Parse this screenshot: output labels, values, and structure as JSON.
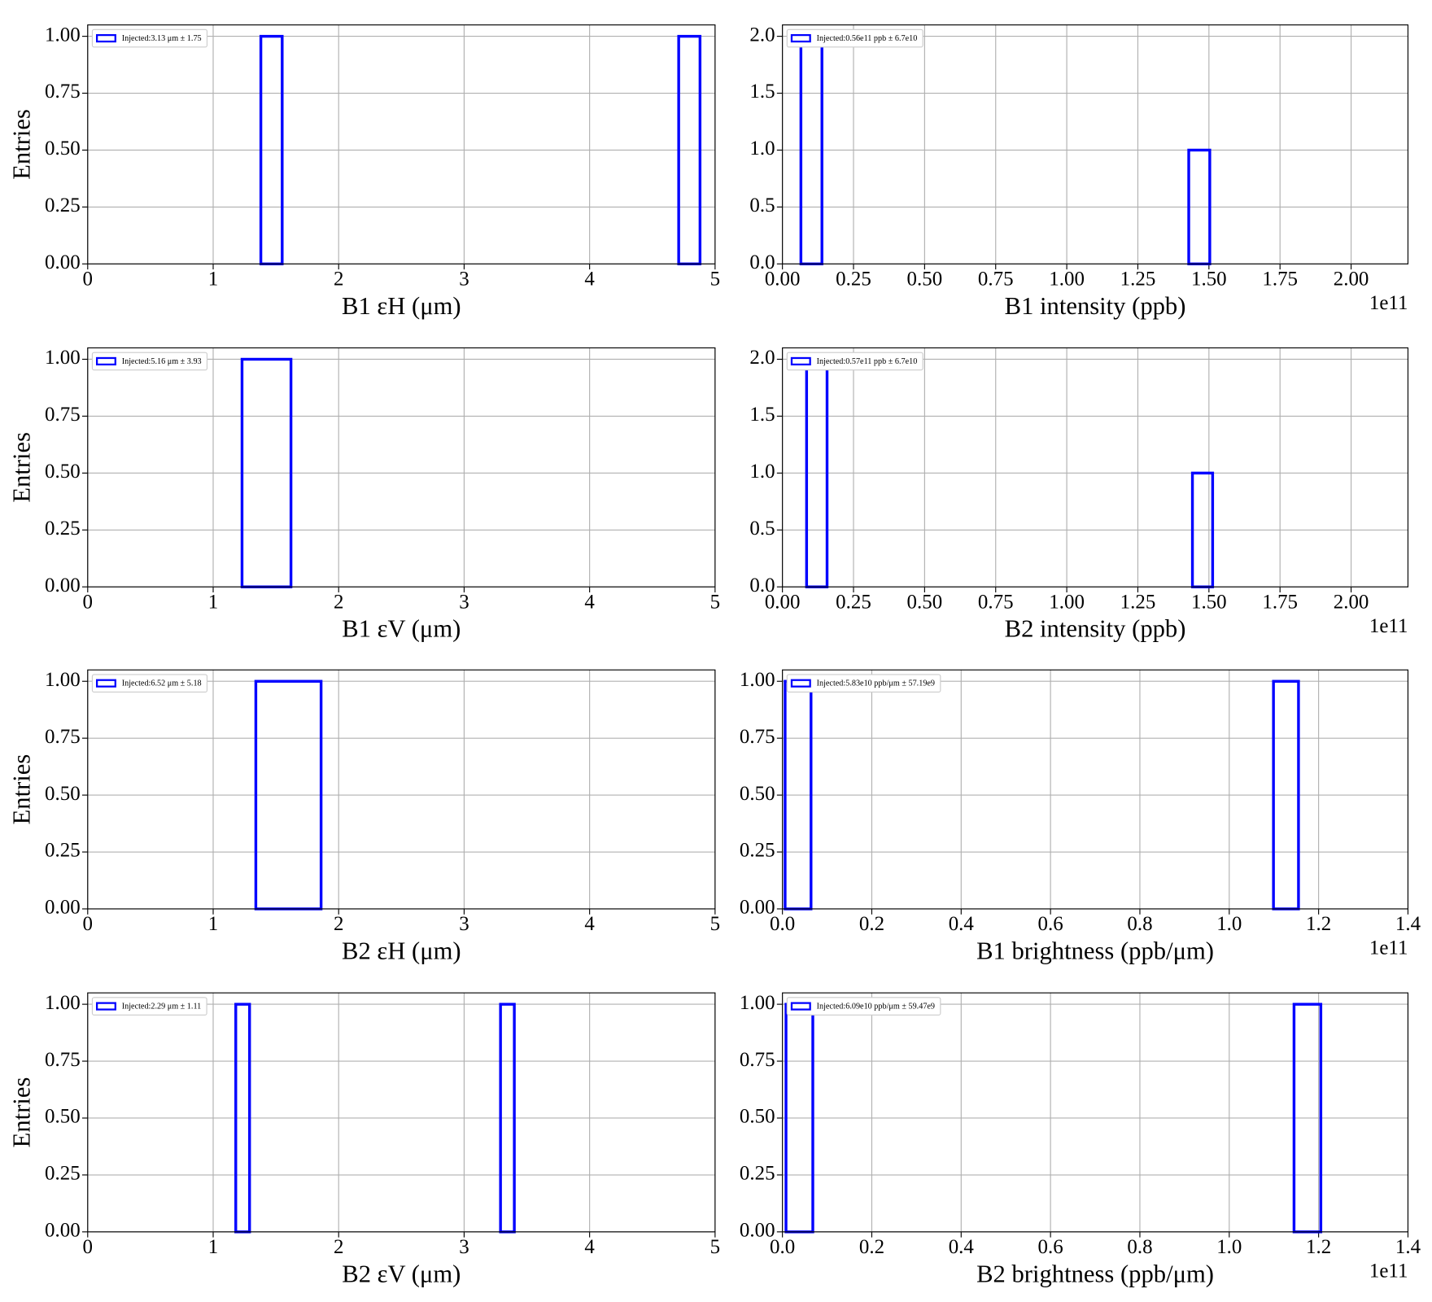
{
  "chart_data": [
    {
      "type": "histogram",
      "xlabel": "B1 εH (μm)",
      "ylabel": "Entries",
      "name": "Injected:3.13 μm ± 1.75",
      "color": "#0000ff",
      "legend": "upper left",
      "grid": true,
      "bins": [
        1.38,
        1.55,
        4.71,
        4.88
      ],
      "counts": [
        1,
        0,
        1
      ],
      "xlim": [
        0,
        5
      ],
      "xticks": [
        0,
        1,
        2,
        3,
        4,
        5
      ],
      "ylim": [
        0,
        1.05
      ],
      "yticks": [
        {
          "value": 0,
          "label": "0.00"
        },
        {
          "value": 0.25,
          "label": "0.25"
        },
        {
          "value": 0.5,
          "label": "0.50"
        },
        {
          "value": 0.75,
          "label": "0.75"
        },
        {
          "value": 1,
          "label": "1.00"
        }
      ]
    },
    {
      "type": "histogram",
      "xlabel": "B1 intensity (ppb)",
      "x_offset_label": "1e11",
      "name": "Injected:0.56e11 ppb ± 6.7e10",
      "color": "#0000ff",
      "legend": "upper left",
      "grid": true,
      "bins": [
        6500000000,
        13900000000,
        142900000000,
        150300000000
      ],
      "counts": [
        2,
        0,
        1
      ],
      "xlim": [
        0,
        220000000000
      ],
      "xticks": [
        {
          "value": 0,
          "label": "0.00"
        },
        {
          "value": 25000000000,
          "label": "0.25"
        },
        {
          "value": 50000000000,
          "label": "0.50"
        },
        {
          "value": 75000000000,
          "label": "0.75"
        },
        {
          "value": 100000000000,
          "label": "1.00"
        },
        {
          "value": 125000000000,
          "label": "1.25"
        },
        {
          "value": 150000000000,
          "label": "1.50"
        },
        {
          "value": 175000000000,
          "label": "1.75"
        },
        {
          "value": 200000000000,
          "label": "2.00"
        }
      ],
      "ylim": [
        0,
        2.1
      ],
      "yticks": [
        {
          "value": 0,
          "label": "0.0"
        },
        0.5,
        {
          "value": 1,
          "label": "1.0"
        },
        1.5,
        {
          "value": 2,
          "label": "2.0"
        }
      ]
    },
    {
      "type": "histogram",
      "xlabel": "B1 εV (μm)",
      "ylabel": "Entries",
      "name": "Injected:5.16 μm ± 3.93",
      "color": "#0000ff",
      "legend": "upper left",
      "grid": true,
      "bins": [
        1.23,
        1.62
      ],
      "counts": [
        1
      ],
      "xlim": [
        0,
        5
      ],
      "xticks": [
        0,
        1,
        2,
        3,
        4,
        5
      ],
      "ylim": [
        0,
        1.05
      ],
      "yticks": [
        {
          "value": 0,
          "label": "0.00"
        },
        {
          "value": 0.25,
          "label": "0.25"
        },
        {
          "value": 0.5,
          "label": "0.50"
        },
        {
          "value": 0.75,
          "label": "0.75"
        },
        {
          "value": 1,
          "label": "1.00"
        }
      ]
    },
    {
      "type": "histogram",
      "xlabel": "B2 intensity (ppb)",
      "x_offset_label": "1e11",
      "name": "Injected:0.57e11 ppb ± 6.7e10",
      "color": "#0000ff",
      "legend": "upper left",
      "grid": true,
      "bins": [
        8500000000,
        15700000000,
        144200000000,
        151300000000
      ],
      "counts": [
        2,
        0,
        1
      ],
      "xlim": [
        0,
        220000000000
      ],
      "xticks": [
        {
          "value": 0,
          "label": "0.00"
        },
        {
          "value": 25000000000,
          "label": "0.25"
        },
        {
          "value": 50000000000,
          "label": "0.50"
        },
        {
          "value": 75000000000,
          "label": "0.75"
        },
        {
          "value": 100000000000,
          "label": "1.00"
        },
        {
          "value": 125000000000,
          "label": "1.25"
        },
        {
          "value": 150000000000,
          "label": "1.50"
        },
        {
          "value": 175000000000,
          "label": "1.75"
        },
        {
          "value": 200000000000,
          "label": "2.00"
        }
      ],
      "ylim": [
        0,
        2.1
      ],
      "yticks": [
        {
          "value": 0,
          "label": "0.0"
        },
        0.5,
        {
          "value": 1,
          "label": "1.0"
        },
        1.5,
        {
          "value": 2,
          "label": "2.0"
        }
      ]
    },
    {
      "type": "histogram",
      "xlabel": "B2 εH (μm)",
      "ylabel": "Entries",
      "name": "Injected:6.52 μm ± 5.18",
      "color": "#0000ff",
      "legend": "upper left",
      "grid": true,
      "bins": [
        1.34,
        1.86
      ],
      "counts": [
        1
      ],
      "xlim": [
        0,
        5
      ],
      "xticks": [
        0,
        1,
        2,
        3,
        4,
        5
      ],
      "ylim": [
        0,
        1.05
      ],
      "yticks": [
        {
          "value": 0,
          "label": "0.00"
        },
        {
          "value": 0.25,
          "label": "0.25"
        },
        {
          "value": 0.5,
          "label": "0.50"
        },
        {
          "value": 0.75,
          "label": "0.75"
        },
        {
          "value": 1,
          "label": "1.00"
        }
      ]
    },
    {
      "type": "histogram",
      "xlabel": "B1 brightness (ppb/μm)",
      "x_offset_label": "1e11",
      "name": "Injected:5.83e10 ppb/μm ± 57.19e9",
      "color": "#0000ff",
      "legend": "upper left",
      "grid": true,
      "bins": [
        600000000,
        6400000000,
        109900000000,
        115500000000
      ],
      "counts": [
        1,
        0,
        1
      ],
      "xlim": [
        0,
        140000000000
      ],
      "xticks": [
        {
          "value": 0,
          "label": "0.0"
        },
        {
          "value": 20000000000,
          "label": "0.2"
        },
        {
          "value": 40000000000,
          "label": "0.4"
        },
        {
          "value": 60000000000,
          "label": "0.6"
        },
        {
          "value": 80000000000,
          "label": "0.8"
        },
        {
          "value": 100000000000,
          "label": "1.0"
        },
        {
          "value": 120000000000,
          "label": "1.2"
        },
        {
          "value": 140000000000,
          "label": "1.4"
        }
      ],
      "ylim": [
        0,
        1.05
      ],
      "yticks": [
        {
          "value": 0,
          "label": "0.00"
        },
        {
          "value": 0.25,
          "label": "0.25"
        },
        {
          "value": 0.5,
          "label": "0.50"
        },
        {
          "value": 0.75,
          "label": "0.75"
        },
        {
          "value": 1,
          "label": "1.00"
        }
      ]
    },
    {
      "type": "histogram",
      "xlabel": "B2 εV (μm)",
      "ylabel": "Entries",
      "name": "Injected:2.29 μm ± 1.11",
      "color": "#0000ff",
      "legend": "upper left",
      "grid": true,
      "bins": [
        1.18,
        1.29,
        3.29,
        3.4
      ],
      "counts": [
        1,
        0,
        1
      ],
      "xlim": [
        0,
        5
      ],
      "xticks": [
        0,
        1,
        2,
        3,
        4,
        5
      ],
      "ylim": [
        0,
        1.05
      ],
      "yticks": [
        {
          "value": 0,
          "label": "0.00"
        },
        {
          "value": 0.25,
          "label": "0.25"
        },
        {
          "value": 0.5,
          "label": "0.50"
        },
        {
          "value": 0.75,
          "label": "0.75"
        },
        {
          "value": 1,
          "label": "1.00"
        }
      ]
    },
    {
      "type": "histogram",
      "xlabel": "B2 brightness (ppb/μm)",
      "x_offset_label": "1e11",
      "name": "Injected:6.09e10 ppb/μm ± 59.47e9",
      "color": "#0000ff",
      "legend": "upper left",
      "grid": true,
      "bins": [
        800000000,
        6800000000,
        114500000000,
        120500000000
      ],
      "counts": [
        1,
        0,
        1
      ],
      "xlim": [
        0,
        140000000000
      ],
      "xticks": [
        {
          "value": 0,
          "label": "0.0"
        },
        {
          "value": 20000000000,
          "label": "0.2"
        },
        {
          "value": 40000000000,
          "label": "0.4"
        },
        {
          "value": 60000000000,
          "label": "0.6"
        },
        {
          "value": 80000000000,
          "label": "0.8"
        },
        {
          "value": 100000000000,
          "label": "1.0"
        },
        {
          "value": 120000000000,
          "label": "1.2"
        },
        {
          "value": 140000000000,
          "label": "1.4"
        }
      ],
      "ylim": [
        0,
        1.05
      ],
      "yticks": [
        {
          "value": 0,
          "label": "0.00"
        },
        {
          "value": 0.25,
          "label": "0.25"
        },
        {
          "value": 0.5,
          "label": "0.50"
        },
        {
          "value": 0.75,
          "label": "0.75"
        },
        {
          "value": 1,
          "label": "1.00"
        }
      ]
    }
  ]
}
